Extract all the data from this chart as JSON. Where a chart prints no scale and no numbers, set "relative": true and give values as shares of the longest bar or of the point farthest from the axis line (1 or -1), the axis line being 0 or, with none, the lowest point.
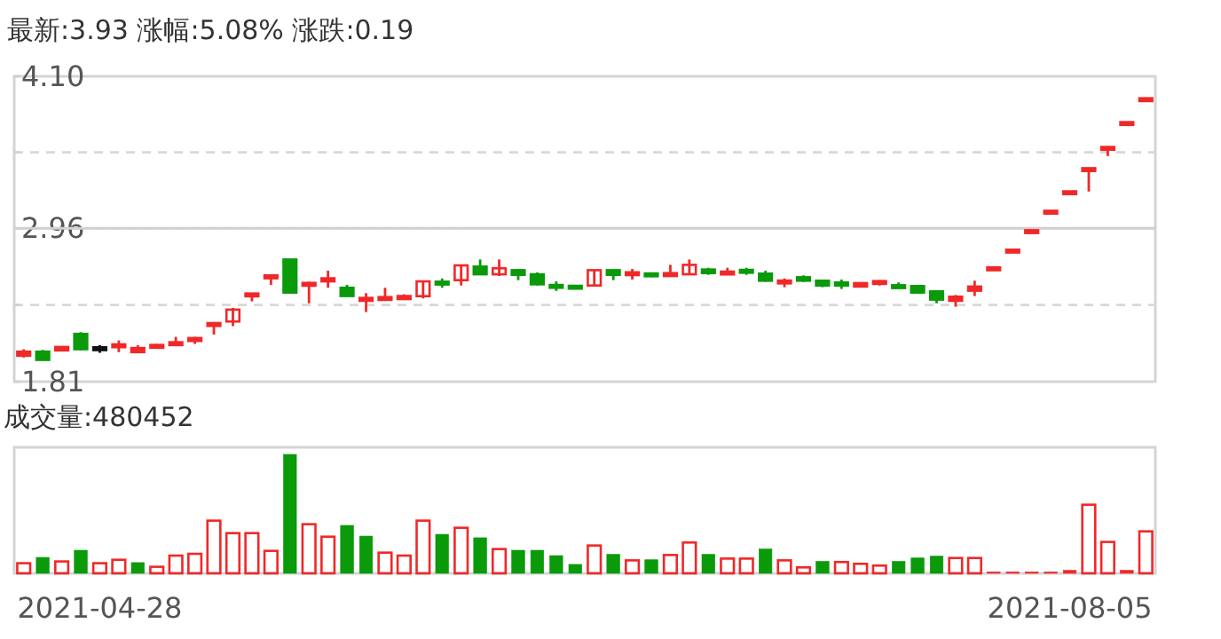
{
  "chart_data": [
    {
      "type": "candlestick",
      "title": "最新:3.93  涨幅:5.08%  涨跌:0.19",
      "tick_labels": "y",
      "grid": "y",
      "categories": [
        null,
        null,
        null,
        null,
        null,
        null,
        null,
        null,
        null,
        null,
        null,
        null,
        null,
        null,
        null,
        null,
        null,
        null,
        null,
        null,
        null,
        null,
        null,
        null,
        null,
        null,
        null,
        null,
        null,
        null,
        null,
        null,
        null,
        null,
        null,
        null,
        null,
        null,
        null,
        null,
        null,
        null,
        null,
        null,
        null,
        null,
        null,
        null,
        null,
        null,
        null,
        null,
        null,
        null,
        null,
        null,
        null,
        null,
        null,
        null
      ],
      "ref_lines": [
        {
          "axis": "y",
          "value": 2.96,
          "color": "#d0d0d0",
          "line_style": "solid"
        }
      ],
      "ylim": [
        1.81,
        4.1
      ],
      "yticks": [
        1.81,
        {
          "value": 2.385,
          "label": null
        },
        2.96,
        {
          "value": 3.53,
          "label": null
        },
        {
          "value": 4.1,
          "label": "4.10"
        }
      ],
      "ohlc": [
        [
          2.004,
          2.053,
          1.991,
          2.035
        ],
        [
          2.035,
          2.048,
          1.968,
          1.973
        ],
        [
          2.044,
          2.075,
          2.04,
          2.07
        ],
        [
          2.168,
          2.181,
          2.044,
          2.053
        ],
        [
          2.057,
          2.084,
          2.026,
          2.057
        ],
        [
          2.07,
          2.119,
          2.031,
          2.088
        ],
        [
          2.031,
          2.084,
          2.026,
          2.062
        ],
        [
          2.07,
          2.093,
          2.066,
          2.079
        ],
        [
          2.088,
          2.146,
          2.079,
          2.101
        ],
        [
          2.115,
          2.146,
          2.093,
          2.137
        ],
        [
          2.234,
          2.243,
          2.163,
          2.243
        ],
        [
          2.261,
          2.363,
          2.226,
          2.35
        ],
        [
          2.452,
          2.469,
          2.412,
          2.469
        ],
        [
          2.585,
          2.607,
          2.536,
          2.607
        ],
        [
          2.726,
          2.726,
          2.478,
          2.478
        ],
        [
          2.531,
          2.558,
          2.398,
          2.549
        ],
        [
          2.562,
          2.642,
          2.514,
          2.585
        ],
        [
          2.514,
          2.536,
          2.452,
          2.452
        ],
        [
          2.416,
          2.474,
          2.332,
          2.438
        ],
        [
          2.429,
          2.514,
          2.429,
          2.438
        ],
        [
          2.429,
          2.465,
          2.425,
          2.452
        ],
        [
          2.451,
          2.562,
          2.434,
          2.562
        ],
        [
          2.558,
          2.584,
          2.514,
          2.54
        ],
        [
          2.571,
          2.682,
          2.531,
          2.682
        ],
        [
          2.673,
          2.726,
          2.615,
          2.615
        ],
        [
          2.615,
          2.726,
          2.602,
          2.66
        ],
        [
          2.646,
          2.655,
          2.571,
          2.611
        ],
        [
          2.615,
          2.629,
          2.531,
          2.54
        ],
        [
          2.531,
          2.562,
          2.491,
          2.518
        ],
        [
          2.522,
          2.522,
          2.514,
          2.514
        ],
        [
          2.531,
          2.646,
          2.531,
          2.646
        ],
        [
          2.646,
          2.65,
          2.571,
          2.611
        ],
        [
          2.615,
          2.655,
          2.576,
          2.624
        ],
        [
          2.615,
          2.629,
          2.593,
          2.607
        ],
        [
          2.602,
          2.686,
          2.598,
          2.624
        ],
        [
          2.615,
          2.726,
          2.615,
          2.686
        ],
        [
          2.651,
          2.664,
          2.611,
          2.624
        ],
        [
          2.62,
          2.664,
          2.62,
          2.629
        ],
        [
          2.642,
          2.664,
          2.611,
          2.633
        ],
        [
          2.62,
          2.642,
          2.558,
          2.567
        ],
        [
          2.553,
          2.584,
          2.518,
          2.562
        ],
        [
          2.593,
          2.607,
          2.558,
          2.567
        ],
        [
          2.567,
          2.567,
          2.518,
          2.531
        ],
        [
          2.554,
          2.576,
          2.505,
          2.531
        ],
        [
          2.523,
          2.549,
          2.523,
          2.549
        ],
        [
          2.549,
          2.571,
          2.531,
          2.558
        ],
        [
          2.527,
          2.554,
          2.518,
          2.518
        ],
        [
          2.527,
          2.536,
          2.478,
          2.478
        ],
        [
          2.487,
          2.496,
          2.398,
          2.425
        ],
        [
          2.416,
          2.46,
          2.372,
          2.447
        ],
        [
          2.492,
          2.567,
          2.452,
          2.523
        ],
        [
          2.656,
          2.656,
          2.656,
          2.656
        ],
        [
          2.789,
          2.789,
          2.789,
          2.789
        ],
        [
          2.935,
          2.935,
          2.935,
          2.935
        ],
        [
          3.081,
          3.081,
          3.081,
          3.081
        ],
        [
          3.227,
          3.227,
          3.227,
          3.227
        ],
        [
          3.396,
          3.405,
          3.236,
          3.405
        ],
        [
          3.555,
          3.564,
          3.502,
          3.564
        ],
        [
          3.746,
          3.746,
          3.746,
          3.746
        ],
        [
          3.92,
          3.93,
          3.91,
          3.93
        ]
      ],
      "colors": [
        "#f02828",
        "#0a9a0a",
        "#f02828",
        "#0a9a0a",
        "#111111",
        "#f02828",
        "#f02828",
        "#f02828",
        "#f02828",
        "#f02828",
        "#f02828",
        "#f02828",
        "#f02828",
        "#f02828",
        "#0a9a0a",
        "#f02828",
        "#f02828",
        "#0a9a0a",
        "#f02828",
        "#f02828",
        "#f02828",
        "#f02828",
        "#0a9a0a",
        "#f02828",
        "#0a9a0a",
        "#f02828",
        "#0a9a0a",
        "#0a9a0a",
        "#0a9a0a",
        "#0a9a0a",
        "#f02828",
        "#0a9a0a",
        "#f02828",
        "#0a9a0a",
        "#f02828",
        "#f02828",
        "#0a9a0a",
        "#f02828",
        "#0a9a0a",
        "#0a9a0a",
        "#f02828",
        "#0a9a0a",
        "#0a9a0a",
        "#0a9a0a",
        "#f02828",
        "#f02828",
        "#0a9a0a",
        "#0a9a0a",
        "#0a9a0a",
        "#f02828",
        "#f02828",
        "#f02828",
        "#f02828",
        "#f02828",
        "#f02828",
        "#f02828",
        "#f02828",
        "#f02828",
        "#f02828",
        "#f02828"
      ]
    },
    {
      "type": "bar",
      "title": "成交量:480452",
      "relative": true,
      "tick_labels": "x",
      "categories": [
        null,
        null,
        null,
        null,
        "2021-04-28",
        null,
        null,
        null,
        null,
        null,
        null,
        null,
        null,
        null,
        null,
        null,
        null,
        null,
        null,
        null,
        null,
        null,
        null,
        null,
        null,
        null,
        null,
        null,
        null,
        null,
        null,
        null,
        null,
        null,
        null,
        null,
        null,
        null,
        null,
        null,
        null,
        null,
        null,
        null,
        null,
        null,
        null,
        null,
        null,
        null,
        null,
        null,
        null,
        null,
        null,
        "2021-08-05",
        null,
        null,
        null,
        null
      ],
      "values": [
        0.085,
        0.134,
        0.1,
        0.194,
        0.085,
        0.114,
        0.09,
        0.055,
        0.149,
        0.164,
        0.443,
        0.338,
        0.338,
        0.189,
        1,
        0.413,
        0.308,
        0.403,
        0.313,
        0.174,
        0.149,
        0.443,
        0.328,
        0.383,
        0.299,
        0.204,
        0.194,
        0.194,
        0.149,
        0.075,
        0.234,
        0.159,
        0.109,
        0.114,
        0.154,
        0.259,
        0.159,
        0.124,
        0.124,
        0.204,
        0.109,
        0.05,
        0.1,
        0.095,
        0.08,
        0.065,
        0.1,
        0.129,
        0.144,
        0.129,
        0.129,
        0.01,
        0.01,
        0.01,
        0.01,
        0.025,
        0.577,
        0.264,
        0.025,
        0.353
      ],
      "colors": [
        "#f02828",
        "#0a9a0a",
        "#f02828",
        "#0a9a0a",
        "#f02828",
        "#f02828",
        "#0a9a0a",
        "#f02828",
        "#f02828",
        "#f02828",
        "#f02828",
        "#f02828",
        "#f02828",
        "#f02828",
        "#0a9a0a",
        "#f02828",
        "#f02828",
        "#0a9a0a",
        "#0a9a0a",
        "#f02828",
        "#f02828",
        "#f02828",
        "#0a9a0a",
        "#f02828",
        "#0a9a0a",
        "#f02828",
        "#0a9a0a",
        "#0a9a0a",
        "#0a9a0a",
        "#0a9a0a",
        "#f02828",
        "#0a9a0a",
        "#f02828",
        "#0a9a0a",
        "#f02828",
        "#f02828",
        "#0a9a0a",
        "#f02828",
        "#f02828",
        "#0a9a0a",
        "#f02828",
        "#f02828",
        "#0a9a0a",
        "#f02828",
        "#f02828",
        "#f02828",
        "#0a9a0a",
        "#0a9a0a",
        "#0a9a0a",
        "#f02828",
        "#f02828",
        "#f02828",
        "#f02828",
        "#f02828",
        "#f02828",
        "#f02828",
        "#f02828",
        "#f02828",
        "#f02828",
        "#f02828"
      ]
    }
  ]
}
